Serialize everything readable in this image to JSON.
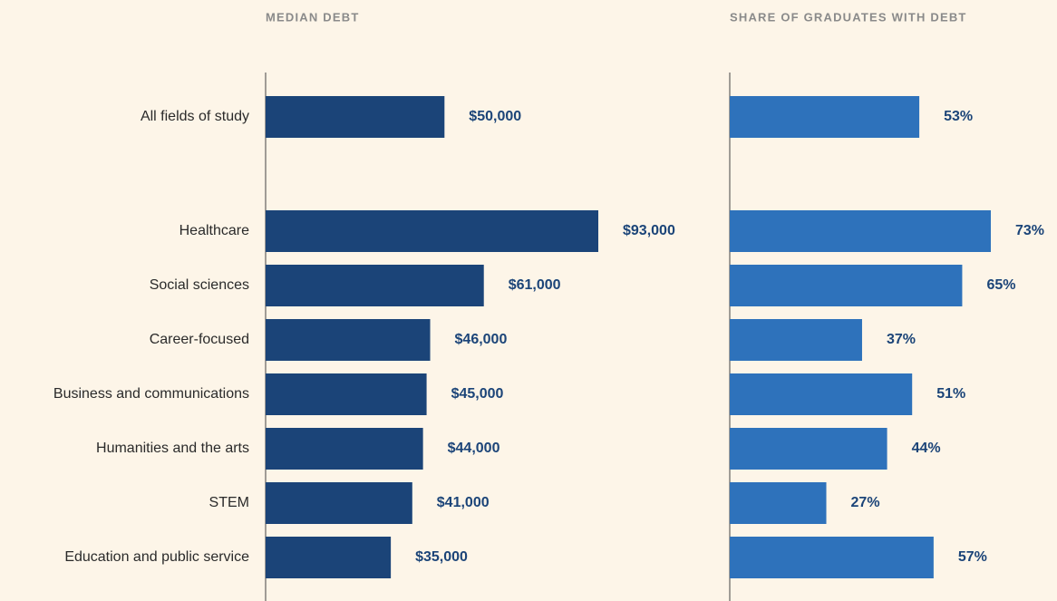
{
  "chart_data": [
    {
      "type": "hbar",
      "title": "MEDIAN DEBT",
      "categories": [
        "All fields of study",
        "Healthcare",
        "Social sciences",
        "Career-focused",
        "Business and communications",
        "Humanities and the arts",
        "STEM",
        "Education and public service"
      ],
      "values": [
        50000,
        93000,
        61000,
        46000,
        45000,
        44000,
        41000,
        35000
      ],
      "value_labels": [
        "$50,000",
        "$93,000",
        "$61,000",
        "$46,000",
        "$45,000",
        "$44,000",
        "$41,000",
        "$35,000"
      ],
      "color": "#1b4478"
    },
    {
      "type": "hbar",
      "title": "SHARE OF GRADUATES WITH DEBT",
      "values": [
        53,
        73,
        65,
        37,
        51,
        44,
        27,
        57
      ],
      "value_labels": [
        "53%",
        "73%",
        "65%",
        "37%",
        "51%",
        "44%",
        "27%",
        "57%"
      ],
      "color": "#2e72bb"
    }
  ]
}
